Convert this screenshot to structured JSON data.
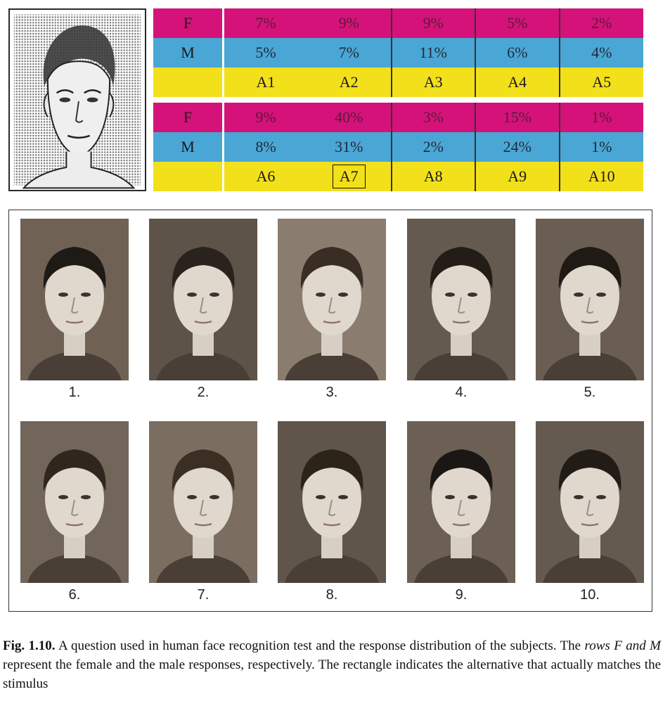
{
  "table_1": {
    "rows": [
      {
        "label": "F",
        "cells": [
          "7%",
          "9%",
          "9%",
          "5%",
          "2%"
        ]
      },
      {
        "label": "M",
        "cells": [
          "5%",
          "7%",
          "11%",
          "6%",
          "4%"
        ]
      },
      {
        "label": "",
        "cells": [
          "A1",
          "A2",
          "A3",
          "A4",
          "A5"
        ]
      }
    ]
  },
  "table_2": {
    "rows": [
      {
        "label": "F",
        "cells": [
          "9%",
          "40%",
          "3%",
          "15%",
          "1%"
        ]
      },
      {
        "label": "M",
        "cells": [
          "8%",
          "31%",
          "2%",
          "24%",
          "1%"
        ]
      },
      {
        "label": "",
        "cells": [
          "A6",
          "A7",
          "A8",
          "A9",
          "A10"
        ]
      }
    ]
  },
  "highlighted_alternative": "A7",
  "photos": [
    "1.",
    "2.",
    "3.",
    "4.",
    "5.",
    "6.",
    "7.",
    "8.",
    "9.",
    "10."
  ],
  "caption": {
    "label": "Fig. 1.10.",
    "text_1": "A question used in human face recognition test and the response distribution of the subjects. The",
    "italic": "rows F and M",
    "text_2": "represent the female and the male responses, respectively. The rectangle indicates the alternative that actually matches the stimulus"
  },
  "colors": {
    "female_row": "#d5127a",
    "male_row": "#4aa6d4",
    "alternative_row": "#f2e01b"
  }
}
